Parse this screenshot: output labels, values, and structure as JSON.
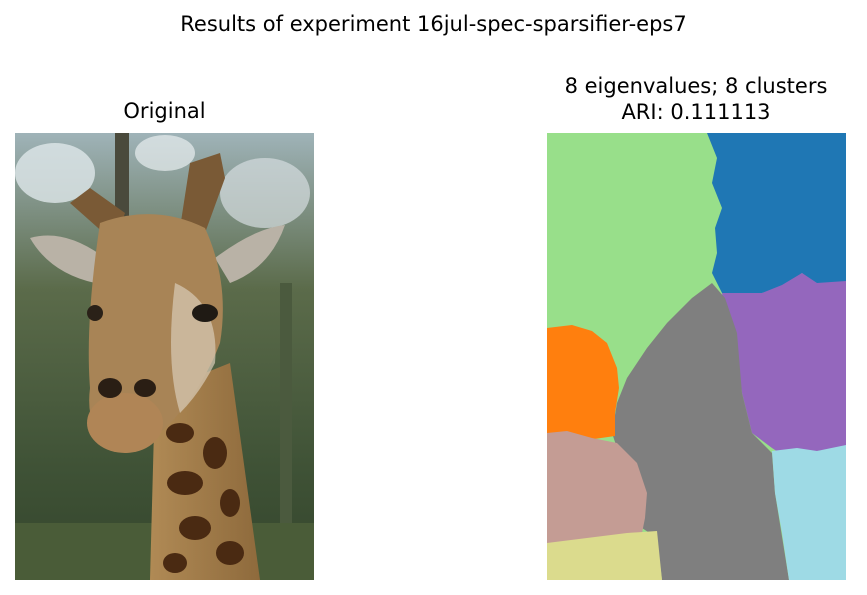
{
  "figure": {
    "suptitle": "Results of experiment 16jul-spec-sparsifier-eps7",
    "left_panel": {
      "title": "Original"
    },
    "right_panel": {
      "title_line1": "8 eigenvalues; 8 clusters",
      "title_line2": "ARI: 0.111113"
    }
  },
  "colors": {
    "cluster_light_green": "#98df8a",
    "cluster_blue": "#1f77b4",
    "cluster_orange": "#ff7f0e",
    "cluster_gray": "#7f7f7f",
    "cluster_purple": "#9467bd",
    "cluster_pink_brown": "#c49c94",
    "cluster_light_cyan": "#9edae5",
    "cluster_khaki": "#dbdb8d"
  }
}
